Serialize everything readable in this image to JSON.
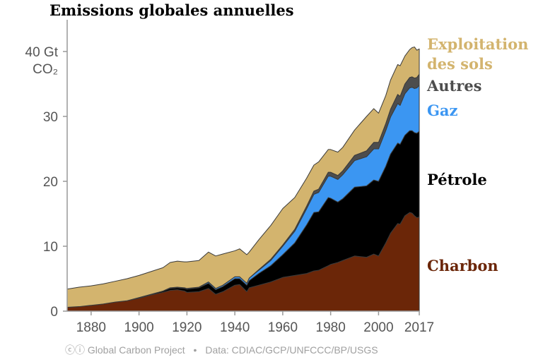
{
  "chart_data": {
    "type": "area",
    "title": "Emissions globales annuelles",
    "ylabel": [
      "40 Gt",
      "CO₂"
    ],
    "xlabel": "",
    "xlim": [
      1870,
      2017
    ],
    "ylim": [
      0,
      45
    ],
    "x_ticks": [
      "1880",
      "1900",
      "1920",
      "1940",
      "1960",
      "1980",
      "2000",
      "2017"
    ],
    "y_ticks": [
      "0",
      "10",
      "20",
      "30"
    ],
    "stacking": "stacked",
    "grid": false,
    "legend": "right-inline",
    "x": [
      1870,
      1875,
      1880,
      1885,
      1890,
      1895,
      1900,
      1905,
      1910,
      1913,
      1916,
      1919,
      1920,
      1925,
      1929,
      1932,
      1935,
      1940,
      1942,
      1945,
      1946,
      1950,
      1955,
      1960,
      1965,
      1970,
      1973,
      1975,
      1979,
      1980,
      1983,
      1985,
      1990,
      1995,
      1998,
      2000,
      2003,
      2005,
      2008,
      2009,
      2011,
      2013,
      2014,
      2015,
      2016,
      2017
    ],
    "series": [
      {
        "name": "Charbon",
        "color": "#6b2608",
        "values": [
          0.6,
          0.7,
          0.9,
          1.1,
          1.4,
          1.6,
          2.0,
          2.5,
          2.9,
          3.2,
          3.3,
          3.1,
          2.9,
          3.0,
          3.5,
          2.6,
          3.0,
          4.0,
          4.1,
          3.0,
          3.6,
          4.0,
          4.5,
          5.2,
          5.5,
          5.8,
          6.2,
          6.3,
          7.0,
          7.2,
          7.5,
          7.8,
          8.5,
          8.3,
          8.8,
          8.5,
          10.5,
          12.0,
          13.5,
          13.4,
          14.7,
          15.2,
          15.1,
          14.7,
          14.4,
          14.5
        ]
      },
      {
        "name": "Pétrole",
        "color": "#000000",
        "values": [
          0.0,
          0.0,
          0.0,
          0.0,
          0.0,
          0.0,
          0.1,
          0.1,
          0.2,
          0.3,
          0.3,
          0.4,
          0.5,
          0.6,
          0.8,
          0.7,
          0.8,
          1.0,
          0.9,
          1.0,
          1.1,
          1.8,
          2.5,
          3.5,
          5.0,
          7.5,
          9.0,
          9.0,
          10.5,
          10.2,
          9.3,
          9.5,
          10.6,
          11.0,
          11.4,
          11.5,
          11.8,
          12.2,
          12.4,
          12.3,
          12.4,
          12.6,
          12.7,
          12.8,
          13.0,
          13.2
        ]
      },
      {
        "name": "Gaz",
        "color": "#3b96f2",
        "values": [
          0.0,
          0.0,
          0.0,
          0.0,
          0.0,
          0.0,
          0.0,
          0.0,
          0.0,
          0.1,
          0.1,
          0.1,
          0.1,
          0.1,
          0.2,
          0.2,
          0.2,
          0.3,
          0.3,
          0.3,
          0.4,
          0.5,
          0.8,
          1.3,
          1.8,
          2.5,
          2.8,
          3.0,
          3.3,
          3.4,
          3.5,
          3.7,
          4.1,
          4.5,
          4.8,
          5.0,
          5.5,
          5.7,
          6.1,
          6.0,
          6.4,
          6.6,
          6.7,
          6.8,
          7.0,
          7.1
        ]
      },
      {
        "name": "Autres",
        "color": "#4d4d4d",
        "values": [
          0.0,
          0.0,
          0.0,
          0.0,
          0.0,
          0.0,
          0.0,
          0.0,
          0.0,
          0.0,
          0.0,
          0.0,
          0.0,
          0.0,
          0.0,
          0.0,
          0.0,
          0.0,
          0.0,
          0.0,
          0.0,
          0.1,
          0.2,
          0.2,
          0.3,
          0.4,
          0.5,
          0.5,
          0.6,
          0.6,
          0.6,
          0.6,
          0.8,
          0.9,
          1.0,
          1.0,
          1.1,
          1.2,
          1.4,
          1.4,
          1.5,
          1.6,
          1.6,
          1.6,
          1.6,
          1.7
        ]
      },
      {
        "name": "Exploitation des sols",
        "display_lines": [
          "Exploitation",
          "des sols"
        ],
        "color": "#d3b46e",
        "values": [
          2.8,
          3.0,
          3.0,
          3.1,
          3.2,
          3.4,
          3.4,
          3.5,
          3.6,
          3.9,
          4.0,
          4.0,
          4.1,
          4.1,
          4.6,
          5.0,
          4.8,
          4.0,
          4.3,
          4.4,
          4.0,
          4.6,
          5.2,
          5.6,
          4.9,
          4.3,
          4.0,
          4.2,
          3.5,
          3.5,
          3.6,
          3.6,
          3.9,
          5.3,
          5.2,
          4.5,
          4.3,
          4.5,
          4.6,
          4.7,
          4.3,
          4.3,
          4.5,
          4.8,
          4.2,
          3.9
        ]
      }
    ]
  },
  "footer": {
    "credit": "Global Carbon Project",
    "separator": "•",
    "source": "Data: CDIAC/GCP/UNFCCC/BP/USGS"
  }
}
